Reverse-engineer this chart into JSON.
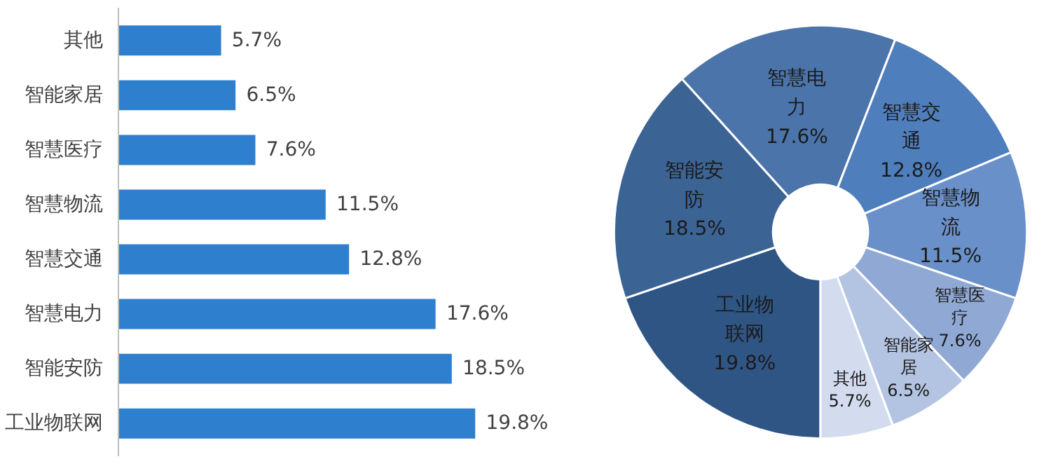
{
  "chart_data": [
    {
      "type": "bar",
      "orientation": "horizontal",
      "categories": [
        "其他",
        "智能家居",
        "智慧医疗",
        "智慧物流",
        "智慧交通",
        "智慧电力",
        "智能安防",
        "工业物联网"
      ],
      "values": [
        5.7,
        6.5,
        7.6,
        11.5,
        12.8,
        17.6,
        18.5,
        19.8
      ],
      "color": "#2f7fcf",
      "value_labels": [
        "5.7%",
        "6.5%",
        "7.6%",
        "11.5%",
        "12.8%",
        "17.6%",
        "18.5%",
        "19.8%"
      ],
      "grid": false
    },
    {
      "type": "donut",
      "categories": [
        "工业物联网",
        "智能安防",
        "智慧电力",
        "智慧交通",
        "智慧物流",
        "智慧医疗",
        "智能家居",
        "其他"
      ],
      "values": [
        19.8,
        18.5,
        17.6,
        12.8,
        11.5,
        7.6,
        6.5,
        5.7
      ],
      "value_labels": [
        "19.8%",
        "18.5%",
        "17.6%",
        "12.8%",
        "11.5%",
        "7.6%",
        "6.5%",
        "5.7%"
      ],
      "colors": [
        "#2f5585",
        "#3b6394",
        "#4a74aa",
        "#4f7ebd",
        "#6a90c9",
        "#8fa8d4",
        "#b3c3e2",
        "#d3dbef"
      ]
    }
  ]
}
